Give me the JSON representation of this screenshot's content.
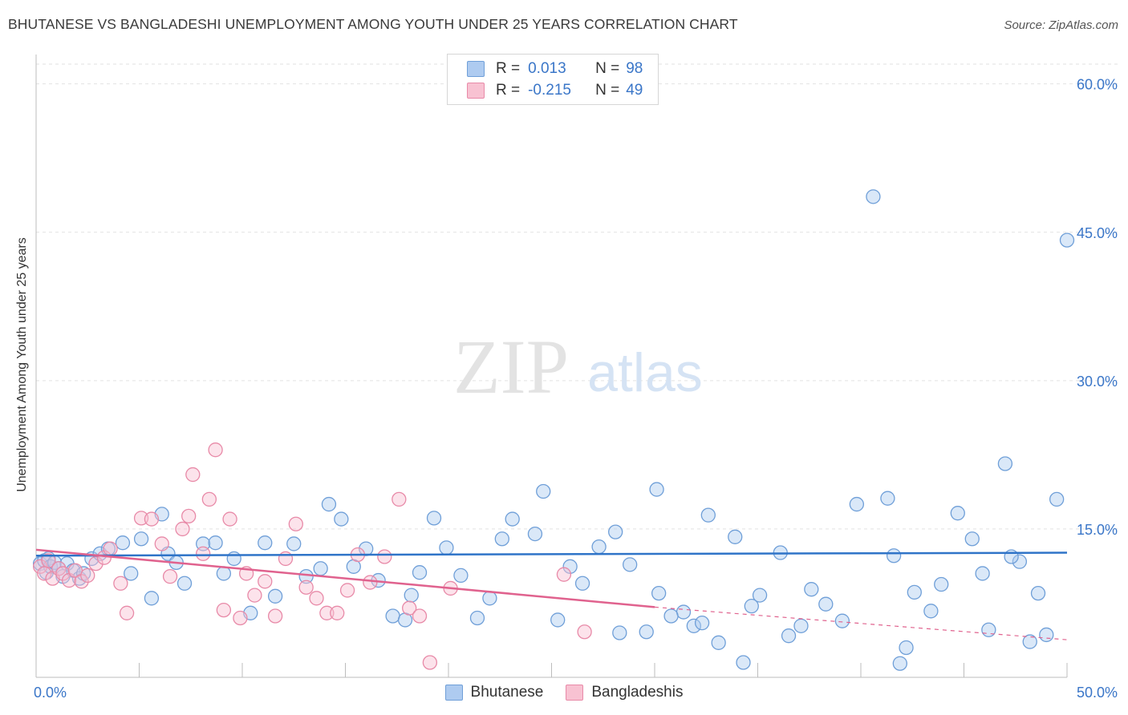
{
  "title": "BHUTANESE VS BANGLADESHI UNEMPLOYMENT AMONG YOUTH UNDER 25 YEARS CORRELATION CHART",
  "source": "Source: ZipAtlas.com",
  "watermark": {
    "zip": "ZIP",
    "atlas": "atlas"
  },
  "colors": {
    "blue_fill": "#aecbf0",
    "blue_stroke": "#6f9fd8",
    "blue_line": "#2f74c8",
    "pink_fill": "#f8c2d2",
    "pink_stroke": "#e88aa8",
    "pink_line": "#e0628e",
    "tick_label": "#3a76c8",
    "grid": "#e2e2e2"
  },
  "legend": {
    "rows": [
      {
        "r_label": "R =",
        "r_value": "0.013",
        "n_label": "N =",
        "n_value": "98"
      },
      {
        "r_label": "R =",
        "r_value": "-0.215",
        "n_label": "N =",
        "n_value": "49"
      }
    ]
  },
  "chart_data": {
    "type": "scatter",
    "title": "BHUTANESE VS BANGLADESHI UNEMPLOYMENT AMONG YOUTH UNDER 25 YEARS CORRELATION CHART",
    "xlabel": "",
    "ylabel": "Unemployment Among Youth under 25 years",
    "xlim": [
      0,
      50
    ],
    "ylim": [
      0,
      62
    ],
    "x_tick_labels": [
      "0.0%",
      "50.0%"
    ],
    "y_ticks": [
      15,
      30,
      45,
      60
    ],
    "y_tick_labels": [
      "15.0%",
      "30.0%",
      "45.0%",
      "60.0%"
    ],
    "grid": true,
    "legend_position": "top-center",
    "series": [
      {
        "name": "Bhutanese",
        "trend": [
          [
            0,
            12.3
          ],
          [
            50,
            12.6
          ]
        ],
        "points": [
          [
            0.2,
            11.5
          ],
          [
            0.4,
            11.8
          ],
          [
            0.5,
            10.6
          ],
          [
            0.6,
            12
          ],
          [
            0.7,
            11.2
          ],
          [
            0.9,
            11.6
          ],
          [
            1.1,
            11
          ],
          [
            1.3,
            10.2
          ],
          [
            1.5,
            11.5
          ],
          [
            1.8,
            10.8
          ],
          [
            2.1,
            10
          ],
          [
            2.3,
            10.5
          ],
          [
            2.7,
            12
          ],
          [
            3.1,
            12.5
          ],
          [
            3.5,
            13
          ],
          [
            4.2,
            13.6
          ],
          [
            4.6,
            10.5
          ],
          [
            5.1,
            14
          ],
          [
            5.6,
            8
          ],
          [
            6.1,
            16.5
          ],
          [
            6.4,
            12.5
          ],
          [
            6.8,
            11.6
          ],
          [
            7.2,
            9.5
          ],
          [
            8.1,
            13.5
          ],
          [
            8.7,
            13.6
          ],
          [
            9.1,
            10.5
          ],
          [
            9.6,
            12
          ],
          [
            10.4,
            6.5
          ],
          [
            11.1,
            13.6
          ],
          [
            11.6,
            8.2
          ],
          [
            12.5,
            13.5
          ],
          [
            13.1,
            10.2
          ],
          [
            13.8,
            11
          ],
          [
            14.2,
            17.5
          ],
          [
            14.8,
            16
          ],
          [
            15.4,
            11.2
          ],
          [
            16,
            13
          ],
          [
            16.6,
            9.8
          ],
          [
            17.3,
            6.2
          ],
          [
            17.9,
            5.8
          ],
          [
            18.2,
            8.3
          ],
          [
            18.6,
            10.6
          ],
          [
            19.3,
            16.1
          ],
          [
            19.9,
            13.1
          ],
          [
            20.6,
            10.3
          ],
          [
            21.4,
            6
          ],
          [
            22,
            8
          ],
          [
            22.6,
            14
          ],
          [
            23.1,
            16
          ],
          [
            24.2,
            14.5
          ],
          [
            24.6,
            18.8
          ],
          [
            25.3,
            5.8
          ],
          [
            25.9,
            11.2
          ],
          [
            26.5,
            9.5
          ],
          [
            27.3,
            13.2
          ],
          [
            28.1,
            14.7
          ],
          [
            28.8,
            11.4
          ],
          [
            29.6,
            4.6
          ],
          [
            30.2,
            8.5
          ],
          [
            31.4,
            6.6
          ],
          [
            32.6,
            16.4
          ],
          [
            33.9,
            14.2
          ],
          [
            35.1,
            8.3
          ],
          [
            36.1,
            12.6
          ],
          [
            37.1,
            5.2
          ],
          [
            38.3,
            7.4
          ],
          [
            39.1,
            5.7
          ],
          [
            40.6,
            48.6
          ],
          [
            41.3,
            18.1
          ],
          [
            41.9,
            1.4
          ],
          [
            42.6,
            8.6
          ],
          [
            43.9,
            9.4
          ],
          [
            44.7,
            16.6
          ],
          [
            45.4,
            14
          ],
          [
            46.2,
            4.8
          ],
          [
            47,
            21.6
          ],
          [
            47.7,
            11.7
          ],
          [
            48.6,
            8.5
          ],
          [
            49,
            4.3
          ],
          [
            49.5,
            18
          ],
          [
            50,
            44.2
          ],
          [
            34.3,
            1.5
          ],
          [
            31.9,
            5.2
          ],
          [
            33.1,
            3.5
          ],
          [
            36.5,
            4.2
          ],
          [
            32.3,
            5.5
          ],
          [
            28.3,
            4.5
          ],
          [
            30.8,
            6.2
          ],
          [
            34.7,
            7.2
          ],
          [
            37.6,
            8.9
          ],
          [
            39.8,
            17.5
          ],
          [
            41.6,
            12.3
          ],
          [
            43.4,
            6.7
          ],
          [
            45.9,
            10.5
          ],
          [
            47.3,
            12.2
          ],
          [
            48.2,
            3.6
          ],
          [
            42.2,
            3
          ],
          [
            30.1,
            19
          ]
        ]
      },
      {
        "name": "Bangladeshis",
        "trend": [
          [
            0,
            12.9
          ],
          [
            30,
            7.1
          ]
        ],
        "trend_dashed": [
          [
            30,
            7.1
          ],
          [
            50,
            3.8
          ]
        ],
        "points": [
          [
            0.2,
            11.2
          ],
          [
            0.4,
            10.5
          ],
          [
            0.6,
            11.8
          ],
          [
            0.8,
            10
          ],
          [
            1.1,
            11
          ],
          [
            1.3,
            10.5
          ],
          [
            1.6,
            9.8
          ],
          [
            1.9,
            10.8
          ],
          [
            2.2,
            9.7
          ],
          [
            2.5,
            10.3
          ],
          [
            2.9,
            11.5
          ],
          [
            3.3,
            12.1
          ],
          [
            3.6,
            13
          ],
          [
            4.1,
            9.5
          ],
          [
            4.4,
            6.5
          ],
          [
            5.1,
            16.1
          ],
          [
            5.6,
            16
          ],
          [
            6.1,
            13.5
          ],
          [
            6.5,
            10.2
          ],
          [
            7.1,
            15
          ],
          [
            7.4,
            16.3
          ],
          [
            7.6,
            20.5
          ],
          [
            8.1,
            12.5
          ],
          [
            8.4,
            18
          ],
          [
            8.7,
            23
          ],
          [
            9.1,
            6.8
          ],
          [
            9.4,
            16
          ],
          [
            9.9,
            6
          ],
          [
            10.2,
            10.5
          ],
          [
            10.6,
            8.3
          ],
          [
            11.1,
            9.7
          ],
          [
            11.6,
            6.2
          ],
          [
            12.1,
            12
          ],
          [
            12.6,
            15.5
          ],
          [
            13.1,
            9.1
          ],
          [
            13.6,
            8
          ],
          [
            14.1,
            6.5
          ],
          [
            14.6,
            6.5
          ],
          [
            15.1,
            8.8
          ],
          [
            15.6,
            12.4
          ],
          [
            16.2,
            9.6
          ],
          [
            16.9,
            12.2
          ],
          [
            17.6,
            18
          ],
          [
            18.1,
            7
          ],
          [
            18.6,
            6.2
          ],
          [
            19.1,
            1.5
          ],
          [
            20.1,
            9
          ],
          [
            25.6,
            10.4
          ],
          [
            26.6,
            4.6
          ]
        ]
      }
    ]
  }
}
